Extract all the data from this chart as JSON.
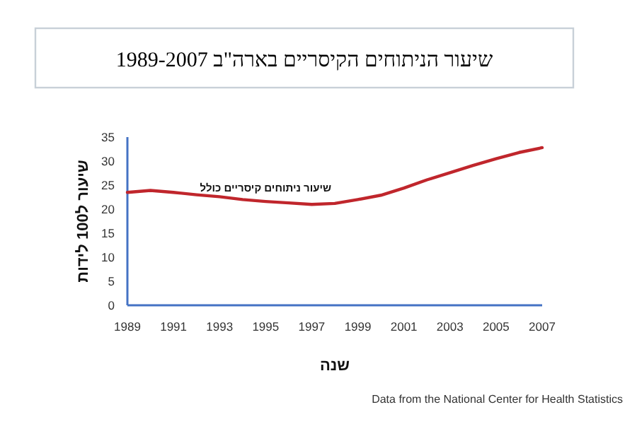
{
  "chart_data": {
    "type": "line",
    "title": "שיעור הניתוחים הקיסריים בארה\"ב 1989-2007",
    "xlabel": "שנה",
    "ylabel": "שיעור ל100 לידות",
    "x": [
      1989,
      1990,
      1991,
      1992,
      1993,
      1994,
      1995,
      1996,
      1997,
      1998,
      1999,
      2000,
      2001,
      2002,
      2003,
      2004,
      2005,
      2006,
      2007
    ],
    "series": [
      {
        "name": "שיעור ניתוחים קיסריים כולל",
        "color": "#c0262c",
        "values": [
          23.5,
          23.9,
          23.5,
          23.0,
          22.6,
          22.0,
          21.6,
          21.3,
          21.0,
          21.2,
          22.0,
          22.9,
          24.4,
          26.1,
          27.6,
          29.1,
          30.5,
          31.8,
          32.8
        ]
      }
    ],
    "xlim": [
      1989,
      2007
    ],
    "xticks": [
      1989,
      1991,
      1993,
      1995,
      1997,
      1999,
      2001,
      2003,
      2005,
      2007
    ],
    "ylim": [
      0,
      35
    ],
    "yticks": [
      0,
      5,
      10,
      15,
      20,
      25,
      30,
      35
    ],
    "grid": false,
    "legend": false,
    "marker": "none",
    "line_style": "solid",
    "annotations": [
      "Data from the National Center for Health Statistics"
    ]
  }
}
